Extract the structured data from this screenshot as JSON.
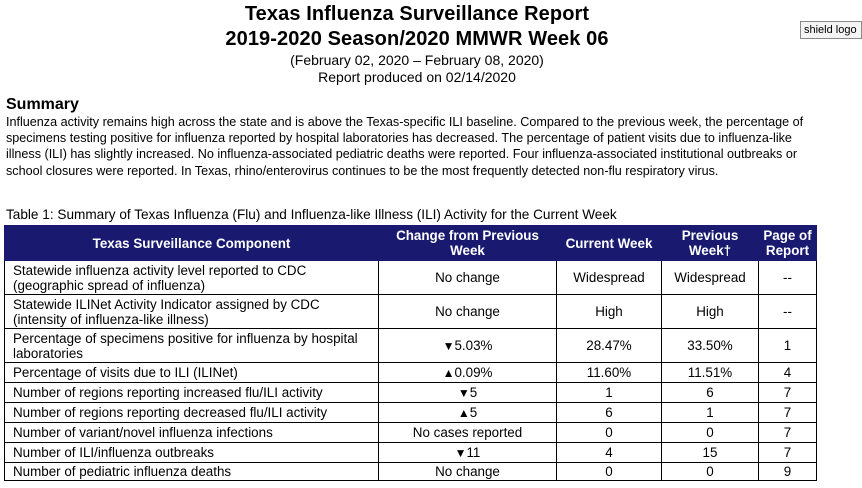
{
  "report": {
    "title": "Texas Influenza Surveillance Report",
    "season": "2019-2020 Season/2020 MMWR Week 06",
    "date_range": "(February 02, 2020 – February 08, 2020)",
    "produced": "Report produced on 02/14/2020"
  },
  "logo": {
    "alt_text": "shield logo"
  },
  "summary": {
    "heading": "Summary",
    "text": "Influenza activity remains high across the state and is above the Texas-specific ILI baseline. Compared to the previous week, the percentage of specimens testing positive for influenza reported by hospital laboratories has decreased. The percentage of patient visits due to influenza-like illness (ILI) has slightly increased. No influenza-associated pediatric deaths were reported. Four influenza-associated institutional outbreaks or school closures were reported.  In Texas, rhino/enterovirus continues to be the most frequently detected non-flu respiratory virus."
  },
  "table": {
    "caption": "Table 1: Summary of Texas Influenza (Flu) and Influenza-like Illness (ILI) Activity for the Current Week",
    "headers": {
      "component": "Texas Surveillance Component",
      "change": "Change from Previous Week",
      "current": "Current Week",
      "previous": "Previous Week†",
      "page": "Page of Report"
    },
    "rows": [
      {
        "component": "Statewide influenza activity level reported to CDC (geographic spread of influenza)",
        "arrow": "",
        "change": "No change",
        "current": "Widespread",
        "previous": "Widespread",
        "page": "--"
      },
      {
        "component": "Statewide ILINet Activity Indicator assigned by CDC (intensity of influenza-like illness)",
        "arrow": "",
        "change": "No change",
        "current": "High",
        "previous": "High",
        "page": "--"
      },
      {
        "component": "Percentage of specimens positive for influenza by hospital laboratories",
        "arrow": "▼",
        "change": "5.03%",
        "current": "28.47%",
        "previous": "33.50%",
        "page": "1"
      },
      {
        "component": "Percentage of visits due to ILI (ILINet)",
        "arrow": "▲",
        "change": "0.09%",
        "current": "11.60%",
        "previous": "11.51%",
        "page": "4"
      },
      {
        "component": "Number of regions reporting increased flu/ILI activity",
        "arrow": "▼",
        "change": "5",
        "current": "1",
        "previous": "6",
        "page": "7"
      },
      {
        "component": "Number of regions reporting decreased flu/ILI activity",
        "arrow": "▲",
        "change": "5",
        "current": "6",
        "previous": "1",
        "page": "7"
      },
      {
        "component": "Number of variant/novel influenza infections",
        "arrow": "",
        "change": "No cases reported",
        "current": "0",
        "previous": "0",
        "page": "7"
      },
      {
        "component": "Number of ILI/influenza outbreaks",
        "arrow": "▼",
        "change": "11",
        "current": "4",
        "previous": "15",
        "page": "7"
      },
      {
        "component": "Number of pediatric influenza deaths",
        "arrow": "",
        "change": "No change",
        "current": "0",
        "previous": "0",
        "page": "9"
      }
    ]
  }
}
